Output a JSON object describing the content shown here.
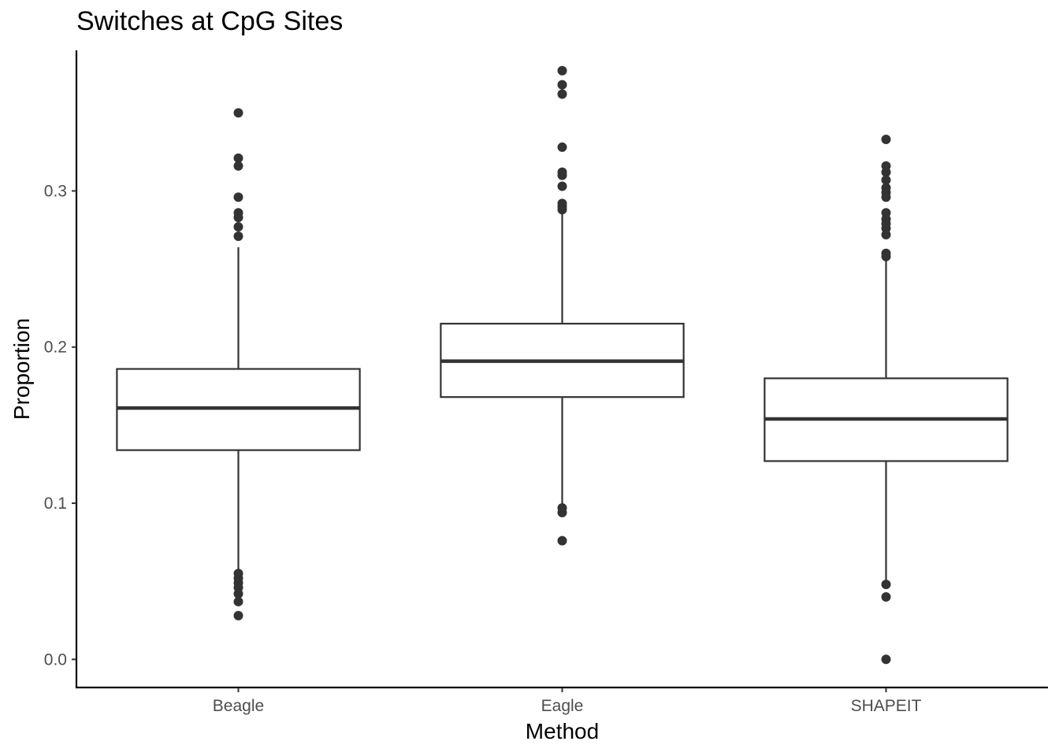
{
  "chart_data": {
    "type": "boxplot",
    "title": "Switches at CpG Sites",
    "xlabel": "Method",
    "ylabel": "Proportion",
    "ylim": [
      -0.018,
      0.39
    ],
    "yticks": [
      0.0,
      0.1,
      0.2,
      0.3
    ],
    "ytick_labels": [
      "0.0",
      "0.1",
      "0.2",
      "0.3"
    ],
    "grid": false,
    "categories": [
      "Beagle",
      "Eagle",
      "SHAPEIT"
    ],
    "boxes": [
      {
        "category": "Beagle",
        "whisker_low": 0.056,
        "q1": 0.134,
        "median": 0.161,
        "q3": 0.186,
        "whisker_high": 0.264,
        "outliers": [
          0.35,
          0.321,
          0.316,
          0.296,
          0.286,
          0.283,
          0.277,
          0.271,
          0.055,
          0.052,
          0.049,
          0.046,
          0.042,
          0.037,
          0.028
        ]
      },
      {
        "category": "Eagle",
        "whisker_low": 0.097,
        "q1": 0.168,
        "median": 0.191,
        "q3": 0.215,
        "whisker_high": 0.287,
        "outliers": [
          0.377,
          0.368,
          0.362,
          0.328,
          0.312,
          0.31,
          0.303,
          0.292,
          0.29,
          0.288,
          0.097,
          0.094,
          0.076
        ]
      },
      {
        "category": "SHAPEIT",
        "whisker_low": 0.048,
        "q1": 0.127,
        "median": 0.154,
        "q3": 0.18,
        "whisker_high": 0.258,
        "outliers": [
          0.333,
          0.316,
          0.312,
          0.307,
          0.302,
          0.299,
          0.296,
          0.286,
          0.282,
          0.279,
          0.276,
          0.272,
          0.26,
          0.258,
          0.048,
          0.04,
          0.0
        ]
      }
    ],
    "colors": {
      "box_stroke": "#333333",
      "box_fill": "#ffffff",
      "outlier": "#333333",
      "axis": "#000000",
      "tick_label": "#4d4d4d"
    }
  }
}
